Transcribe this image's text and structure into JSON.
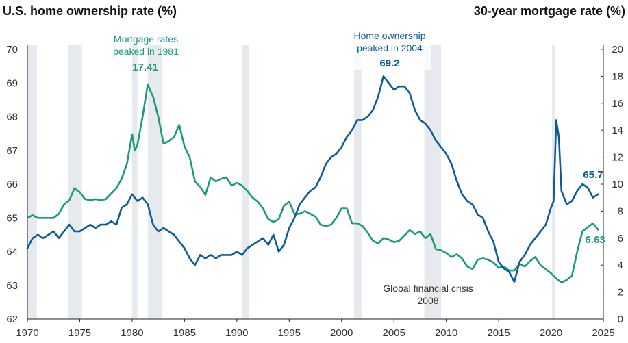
{
  "chart_data": {
    "type": "line",
    "title_left": "U.S. home ownership rate (%)",
    "title_right": "30-year mortgage rate (%)",
    "x_range": [
      1970,
      2025
    ],
    "x_ticks": [
      "1970",
      "1975",
      "1980",
      "1985",
      "1990",
      "1995",
      "2000",
      "2005",
      "2010",
      "2015",
      "2020",
      "2025"
    ],
    "y_left_range": [
      62,
      70
    ],
    "y_left_ticks": [
      "62",
      "63",
      "64",
      "65",
      "66",
      "67",
      "68",
      "69",
      "70"
    ],
    "y_right_range": [
      0,
      20
    ],
    "y_right_ticks": [
      "0",
      "2",
      "4",
      "6",
      "8",
      "10",
      "12",
      "14",
      "16",
      "18",
      "20"
    ],
    "colors": {
      "homeownership": "#0e5a96",
      "mortgage": "#1a9a7b",
      "recession": "#e6e9ed",
      "axis": "#222222"
    },
    "recessions": [
      [
        1970.0,
        1970.9
      ],
      [
        1973.9,
        1975.2
      ],
      [
        1980.0,
        1980.5
      ],
      [
        1981.5,
        1982.9
      ],
      [
        1990.5,
        1991.2
      ],
      [
        2001.2,
        2001.9
      ],
      [
        2007.9,
        2009.5
      ],
      [
        2020.1,
        2020.4
      ]
    ],
    "series": [
      {
        "name": "U.S. home ownership rate (%)",
        "axis": "left",
        "x": [
          1970.0,
          1970.5,
          1971.0,
          1971.5,
          1972.0,
          1972.5,
          1973.0,
          1973.5,
          1974.0,
          1974.5,
          1975.0,
          1975.5,
          1976.0,
          1976.5,
          1977.0,
          1977.5,
          1978.0,
          1978.5,
          1979.0,
          1979.5,
          1980.0,
          1980.5,
          1981.0,
          1981.5,
          1982.0,
          1982.5,
          1983.0,
          1983.5,
          1984.0,
          1984.5,
          1985.0,
          1985.5,
          1986.0,
          1986.5,
          1987.0,
          1987.5,
          1988.0,
          1988.5,
          1989.0,
          1989.5,
          1990.0,
          1990.5,
          1991.0,
          1991.5,
          1992.0,
          1992.5,
          1993.0,
          1993.5,
          1994.0,
          1994.5,
          1995.0,
          1995.5,
          1996.0,
          1996.5,
          1997.0,
          1997.5,
          1998.0,
          1998.5,
          1999.0,
          1999.5,
          2000.0,
          2000.5,
          2001.0,
          2001.5,
          2002.0,
          2002.5,
          2003.0,
          2003.5,
          2004.0,
          2004.5,
          2005.0,
          2005.5,
          2006.0,
          2006.5,
          2007.0,
          2007.5,
          2008.0,
          2008.5,
          2009.0,
          2009.5,
          2010.0,
          2010.5,
          2011.0,
          2011.5,
          2012.0,
          2012.5,
          2013.0,
          2013.5,
          2014.0,
          2014.5,
          2015.0,
          2015.5,
          2016.0,
          2016.5,
          2017.0,
          2017.5,
          2018.0,
          2018.5,
          2019.0,
          2019.5,
          2020.0,
          2020.25,
          2020.5,
          2020.75,
          2021.0,
          2021.5,
          2022.0,
          2022.5,
          2023.0,
          2023.5,
          2024.0,
          2024.5
        ],
        "values": [
          64.1,
          64.4,
          64.5,
          64.4,
          64.5,
          64.6,
          64.4,
          64.6,
          64.8,
          64.6,
          64.6,
          64.7,
          64.8,
          64.7,
          64.8,
          64.8,
          64.9,
          64.8,
          65.3,
          65.4,
          65.7,
          65.5,
          65.6,
          65.4,
          64.8,
          64.6,
          64.7,
          64.6,
          64.5,
          64.3,
          64.1,
          63.8,
          63.6,
          63.9,
          63.8,
          63.9,
          63.8,
          63.9,
          63.9,
          63.9,
          64.0,
          63.9,
          64.1,
          64.2,
          64.3,
          64.4,
          64.2,
          64.5,
          64.0,
          64.2,
          64.7,
          65.0,
          65.4,
          65.6,
          65.8,
          65.9,
          66.2,
          66.6,
          66.8,
          66.9,
          67.1,
          67.4,
          67.6,
          67.9,
          67.9,
          68.0,
          68.2,
          68.6,
          69.2,
          69.0,
          68.8,
          68.9,
          68.9,
          68.7,
          68.2,
          67.9,
          67.8,
          67.6,
          67.3,
          67.1,
          66.9,
          66.6,
          66.1,
          65.7,
          65.5,
          65.4,
          65.1,
          65.0,
          64.6,
          64.3,
          63.7,
          63.5,
          63.4,
          63.1,
          63.7,
          63.9,
          64.2,
          64.4,
          64.6,
          64.8,
          65.3,
          65.5,
          67.9,
          67.4,
          65.8,
          65.4,
          65.5,
          65.8,
          66.0,
          65.9,
          65.6,
          65.7
        ],
        "label_peak": "69.2",
        "label_end": "65.7"
      },
      {
        "name": "30-year mortgage rate (%)",
        "axis": "right",
        "x": [
          1970.0,
          1970.5,
          1971.0,
          1971.5,
          1972.0,
          1972.5,
          1973.0,
          1973.5,
          1974.0,
          1974.5,
          1975.0,
          1975.5,
          1976.0,
          1976.5,
          1977.0,
          1977.5,
          1978.0,
          1978.5,
          1979.0,
          1979.5,
          1980.0,
          1980.25,
          1980.5,
          1981.0,
          1981.5,
          1981.75,
          1982.0,
          1982.5,
          1983.0,
          1983.5,
          1984.0,
          1984.5,
          1985.0,
          1985.5,
          1986.0,
          1986.5,
          1987.0,
          1987.5,
          1988.0,
          1988.5,
          1989.0,
          1989.5,
          1990.0,
          1990.5,
          1991.0,
          1991.5,
          1992.0,
          1992.5,
          1993.0,
          1993.5,
          1994.0,
          1994.5,
          1995.0,
          1995.5,
          1996.0,
          1996.5,
          1997.0,
          1997.5,
          1998.0,
          1998.5,
          1999.0,
          1999.5,
          2000.0,
          2000.5,
          2001.0,
          2001.5,
          2002.0,
          2002.5,
          2003.0,
          2003.5,
          2004.0,
          2004.5,
          2005.0,
          2005.5,
          2006.0,
          2006.5,
          2007.0,
          2007.5,
          2008.0,
          2008.5,
          2009.0,
          2009.5,
          2010.0,
          2010.5,
          2011.0,
          2011.5,
          2012.0,
          2012.5,
          2013.0,
          2013.5,
          2014.0,
          2014.5,
          2015.0,
          2015.5,
          2016.0,
          2016.5,
          2017.0,
          2017.5,
          2018.0,
          2018.5,
          2019.0,
          2019.5,
          2020.0,
          2020.5,
          2021.0,
          2021.5,
          2022.0,
          2022.5,
          2023.0,
          2023.5,
          2024.0,
          2024.5
        ],
        "values": [
          7.5,
          7.7,
          7.5,
          7.5,
          7.5,
          7.5,
          7.8,
          8.5,
          8.8,
          9.7,
          9.4,
          8.9,
          8.8,
          8.9,
          8.8,
          8.9,
          9.3,
          9.7,
          10.4,
          11.5,
          13.7,
          12.5,
          12.9,
          15.0,
          17.41,
          16.9,
          16.5,
          15.0,
          13.0,
          13.2,
          13.5,
          14.4,
          12.8,
          12.0,
          10.2,
          9.8,
          9.2,
          10.5,
          10.2,
          10.4,
          10.5,
          9.9,
          10.1,
          9.9,
          9.5,
          9.0,
          8.7,
          8.2,
          7.4,
          7.2,
          7.4,
          8.4,
          8.7,
          7.8,
          7.8,
          8.0,
          7.8,
          7.6,
          7.0,
          6.9,
          7.0,
          7.5,
          8.2,
          8.2,
          7.1,
          7.1,
          6.9,
          6.4,
          5.8,
          5.6,
          6.0,
          5.9,
          5.7,
          5.8,
          6.2,
          6.6,
          6.3,
          6.5,
          6.0,
          6.3,
          5.2,
          5.1,
          4.9,
          4.6,
          4.8,
          4.5,
          3.9,
          3.7,
          4.4,
          4.5,
          4.4,
          4.2,
          3.8,
          3.9,
          3.6,
          3.6,
          4.1,
          3.9,
          4.3,
          4.6,
          4.0,
          3.7,
          3.4,
          3.0,
          2.7,
          2.9,
          3.2,
          5.0,
          6.5,
          6.8,
          7.1,
          6.63
        ],
        "label_peak": "17.41",
        "label_end": "6.63"
      }
    ],
    "annotations": {
      "mortgage_peak_line1": "Mortgage rates",
      "mortgage_peak_line2": "peaked in 1981",
      "home_peak_line1": "Home ownership",
      "home_peak_line2": "peaked in 2004",
      "crisis_line1": "Global financial crisis",
      "crisis_line2": "2008"
    }
  }
}
